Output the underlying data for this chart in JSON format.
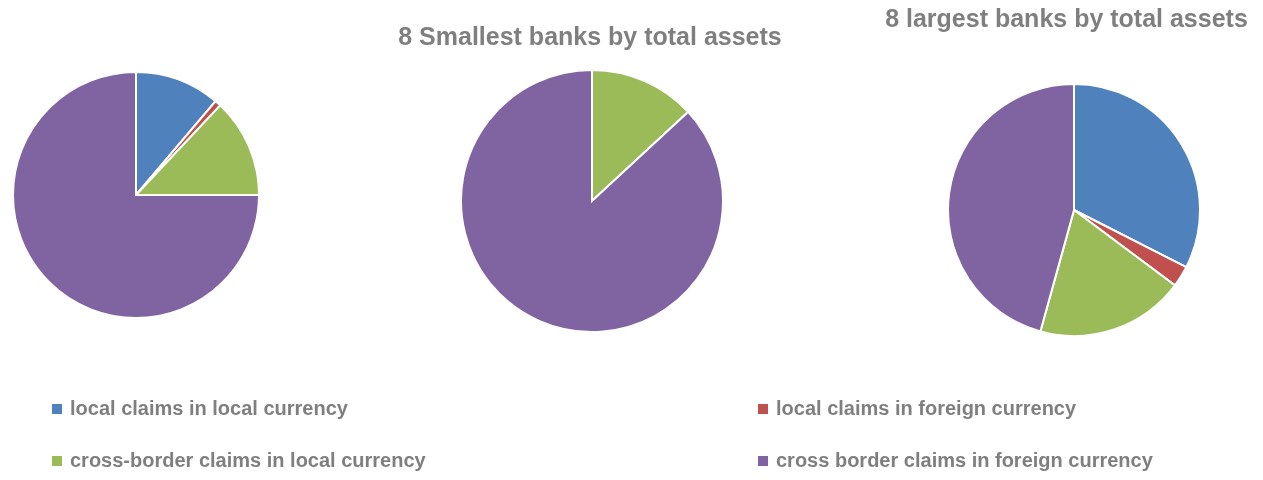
{
  "chart_data": [
    {
      "type": "pie",
      "categories": [
        "local claims in local currency",
        "local claims in foreign currency",
        "cross-border claims in local currency",
        "cross border claims in foreign currency"
      ],
      "values": [
        11.2,
        0.8,
        13,
        75
      ],
      "colors": [
        "#4f81bd",
        "#c0504d",
        "#9bbb59",
        "#8064a2"
      ],
      "legend": "bottom"
    },
    {
      "type": "pie",
      "title": "8 Smallest banks by total assets",
      "values": [
        0,
        0,
        13.1,
        86.9
      ],
      "colors": [
        "#4f81bd",
        "#c0504d",
        "#9bbb59",
        "#8064a2"
      ]
    },
    {
      "type": "pie",
      "title": "8 largest banks by total assets",
      "values": [
        32.5,
        2.7,
        19.1,
        45.7
      ],
      "colors": [
        "#4f81bd",
        "#c0504d",
        "#9bbb59",
        "#8064a2"
      ]
    }
  ]
}
